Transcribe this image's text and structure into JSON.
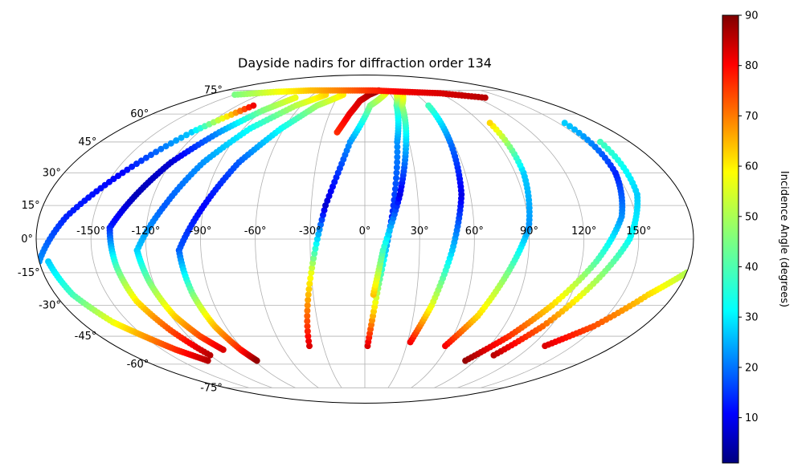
{
  "chart_data": {
    "type": "scatter",
    "projection": "mollweide",
    "title": "Dayside nadirs for diffraction order 134",
    "grid": true,
    "lon_ticks": [
      "-150°",
      "-120°",
      "-90°",
      "-60°",
      "-30°",
      "0°",
      "30°",
      "60°",
      "90°",
      "120°",
      "150°"
    ],
    "lat_ticks": [
      "75°",
      "60°",
      "45°",
      "30°",
      "15°",
      "0°",
      "-15°",
      "-30°",
      "-45°",
      "-60°",
      "-75°"
    ],
    "colorbar": {
      "label": "Incidence Angle (degrees)",
      "range": [
        1,
        90
      ],
      "ticks": [
        "10",
        "20",
        "30",
        "40",
        "50",
        "60",
        "70",
        "80",
        "90"
      ],
      "colormap": "jet"
    },
    "tracks": [
      {
        "lon": [
          -180,
          -165,
          -145,
          -125,
          -105
        ],
        "lat": [
          -10,
          10,
          30,
          50,
          65
        ],
        "inc": [
          25,
          15,
          12,
          30,
          80
        ]
      },
      {
        "lon": [
          -175,
          -170,
          -160,
          -150,
          -140,
          -128
        ],
        "lat": [
          -10,
          -25,
          -38,
          -45,
          -52,
          -58
        ],
        "inc": [
          30,
          40,
          55,
          65,
          75,
          85
        ]
      },
      {
        "lon": [
          -140,
          -130,
          -120,
          -105,
          -90,
          -75
        ],
        "lat": [
          5,
          20,
          35,
          50,
          62,
          70
        ],
        "inc": [
          15,
          6,
          8,
          25,
          45,
          55
        ]
      },
      {
        "lon": [
          -140,
          -138,
          -135,
          -128,
          -120
        ],
        "lat": [
          5,
          -12,
          -28,
          -42,
          -55
        ],
        "inc": [
          15,
          40,
          58,
          72,
          85
        ]
      },
      {
        "lon": [
          -125,
          -112,
          -100,
          -85,
          -65,
          -45
        ],
        "lat": [
          -5,
          15,
          35,
          52,
          65,
          72
        ],
        "inc": [
          30,
          20,
          25,
          35,
          50,
          60
        ]
      },
      {
        "lon": [
          -125,
          -122,
          -118,
          -112,
          -105
        ],
        "lat": [
          -5,
          -20,
          -35,
          -45,
          -52
        ],
        "inc": [
          30,
          45,
          60,
          72,
          82
        ]
      },
      {
        "lon": [
          -102,
          -90,
          -78,
          -62,
          -45,
          -25
        ],
        "lat": [
          -5,
          15,
          35,
          52,
          65,
          72
        ],
        "inc": [
          20,
          12,
          20,
          35,
          48,
          58
        ]
      },
      {
        "lon": [
          -102,
          -100,
          -97,
          -92,
          -88
        ],
        "lat": [
          -5,
          -25,
          -40,
          -52,
          -58
        ],
        "inc": [
          20,
          45,
          62,
          76,
          88
        ]
      },
      {
        "lon": [
          -20,
          -13,
          -5,
          5,
          18
        ],
        "lat": [
          50,
          60,
          68,
          72,
          75
        ],
        "inc": [
          75,
          80,
          82,
          85,
          88
        ]
      },
      {
        "lon": [
          -40,
          -30,
          -22,
          -10,
          5,
          25
        ],
        "lat": [
          -50,
          -15,
          15,
          45,
          65,
          73
        ],
        "inc": [
          82,
          55,
          8,
          25,
          45,
          55
        ]
      },
      {
        "lon": [
          2,
          8,
          15,
          22,
          30,
          38
        ],
        "lat": [
          -50,
          -20,
          10,
          45,
          65,
          73
        ],
        "inc": [
          82,
          45,
          15,
          25,
          40,
          55
        ]
      },
      {
        "lon": [
          5,
          10,
          20,
          28,
          35,
          45
        ],
        "lat": [
          -25,
          -5,
          20,
          45,
          65,
          73
        ],
        "inc": [
          62,
          40,
          10,
          30,
          48,
          58
        ]
      },
      {
        "lon": [
          32,
          40,
          48,
          55,
          58,
          60
        ],
        "lat": [
          -48,
          -30,
          -5,
          20,
          45,
          65
        ],
        "inc": [
          80,
          55,
          30,
          10,
          22,
          40
        ]
      },
      {
        "lon": [
          58,
          70,
          80,
          90,
          95,
          97
        ],
        "lat": [
          -50,
          -35,
          -15,
          5,
          30,
          55
        ],
        "inc": [
          80,
          60,
          45,
          25,
          30,
          60
        ]
      },
      {
        "lon": [
          82,
          98,
          112,
          128,
          142,
          150,
          155
        ],
        "lat": [
          -58,
          -45,
          -30,
          -10,
          10,
          30,
          55
        ],
        "inc": [
          88,
          75,
          60,
          42,
          25,
          15,
          30
        ]
      },
      {
        "lon": [
          100,
          115,
          130,
          145,
          155,
          160
        ],
        "lat": [
          -55,
          -40,
          -20,
          0,
          20,
          45
        ],
        "inc": [
          85,
          70,
          50,
          35,
          30,
          40
        ]
      },
      {
        "lon": [
          130,
          148,
          165,
          180
        ],
        "lat": [
          -50,
          -40,
          -25,
          -15
        ],
        "inc": [
          82,
          72,
          60,
          50
        ]
      },
      {
        "lon": [
          -150,
          -110,
          -70,
          -30,
          10,
          50,
          90,
          130
        ],
        "lat": [
          72,
          74,
          75,
          75,
          75,
          74,
          73,
          70
        ],
        "inc": [
          45,
          55,
          62,
          68,
          75,
          80,
          82,
          85
        ]
      }
    ]
  }
}
